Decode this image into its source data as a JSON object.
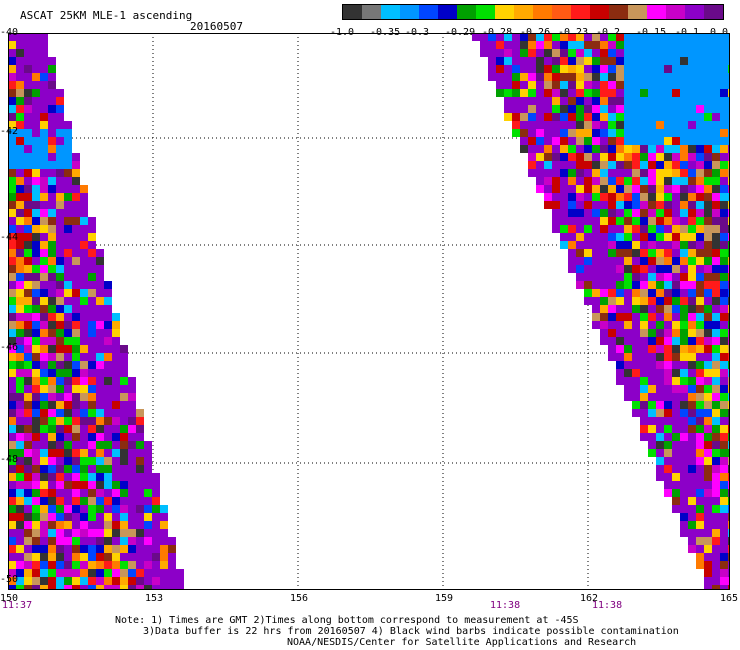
{
  "header": {
    "title": "ASCAT 25KM MLE-1 ascending",
    "date": "20160507"
  },
  "colorbar": {
    "colors": [
      "#333333",
      "#777777",
      "#00bfff",
      "#0096ff",
      "#0046ff",
      "#0000c8",
      "#00a000",
      "#00e000",
      "#ffd200",
      "#ffaa00",
      "#ff7a00",
      "#ff5a14",
      "#ff1a1a",
      "#c80000",
      "#8b2c10",
      "#c8965a",
      "#ff00ff",
      "#c800c8",
      "#8c00c8",
      "#6a0a8a"
    ],
    "tick_labels": [
      "-1.0",
      "-0.35",
      "-0.3",
      "-0.29",
      "-0.28",
      "-0.26",
      "-0.23",
      "-0.2",
      "-0.15",
      "-0.1",
      "0.0"
    ]
  },
  "axes": {
    "x_ticks": [
      "150",
      "153",
      "156",
      "159",
      "162",
      "165"
    ],
    "y_ticks": [
      "-40",
      "-42",
      "-44",
      "-46",
      "-48",
      "-50"
    ]
  },
  "time_labels": [
    {
      "label": "11:37",
      "anchor": "left"
    },
    {
      "label": "11:38",
      "anchor": "mid"
    },
    {
      "label": "11:38",
      "anchor": "right"
    }
  ],
  "notes": {
    "line1": "Note: 1) Times are GMT 2)Times along bottom correspond to measurement at -45S",
    "line2": "3)Data buffer is 22 hrs from 20160507 4) Black wind barbs indicate possible contamination",
    "line3": "NOAA/NESDIS/Center for Satellite Applications and Research"
  }
}
